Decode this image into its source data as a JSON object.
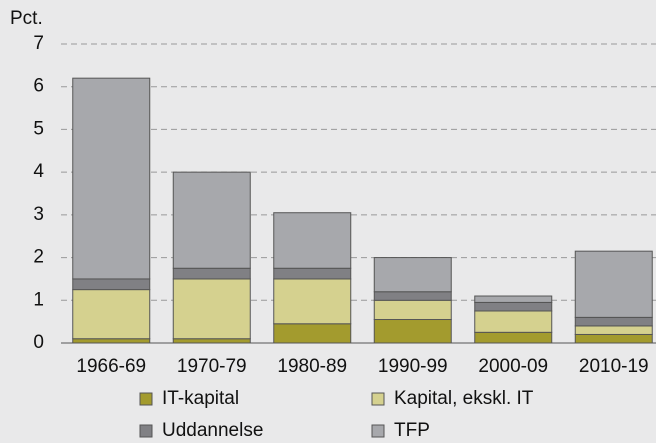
{
  "chart_data": {
    "type": "stacked_bar",
    "y_label": "Pct.",
    "categories": [
      "1966-69",
      "1970-79",
      "1980-89",
      "1990-99",
      "2000-09",
      "2010-19"
    ],
    "series": [
      {
        "name": "IT-kapital",
        "color": "#a39b2e",
        "values": [
          0.1,
          0.1,
          0.45,
          0.55,
          0.25,
          0.2
        ]
      },
      {
        "name": "Kapital, ekskl. IT",
        "color": "#d5d18f",
        "values": [
          1.15,
          1.4,
          1.05,
          0.45,
          0.5,
          0.2
        ]
      },
      {
        "name": "Uddannelse",
        "color": "#808084",
        "values": [
          0.25,
          0.25,
          0.25,
          0.2,
          0.2,
          0.2
        ]
      },
      {
        "name": "TFP",
        "color": "#a7a8ac",
        "values": [
          4.7,
          2.25,
          1.3,
          0.8,
          0.15,
          1.55
        ]
      }
    ],
    "ylim": [
      0,
      7
    ],
    "yticks": [
      0,
      1,
      2,
      3,
      4,
      5,
      6,
      7
    ],
    "grid": true
  }
}
